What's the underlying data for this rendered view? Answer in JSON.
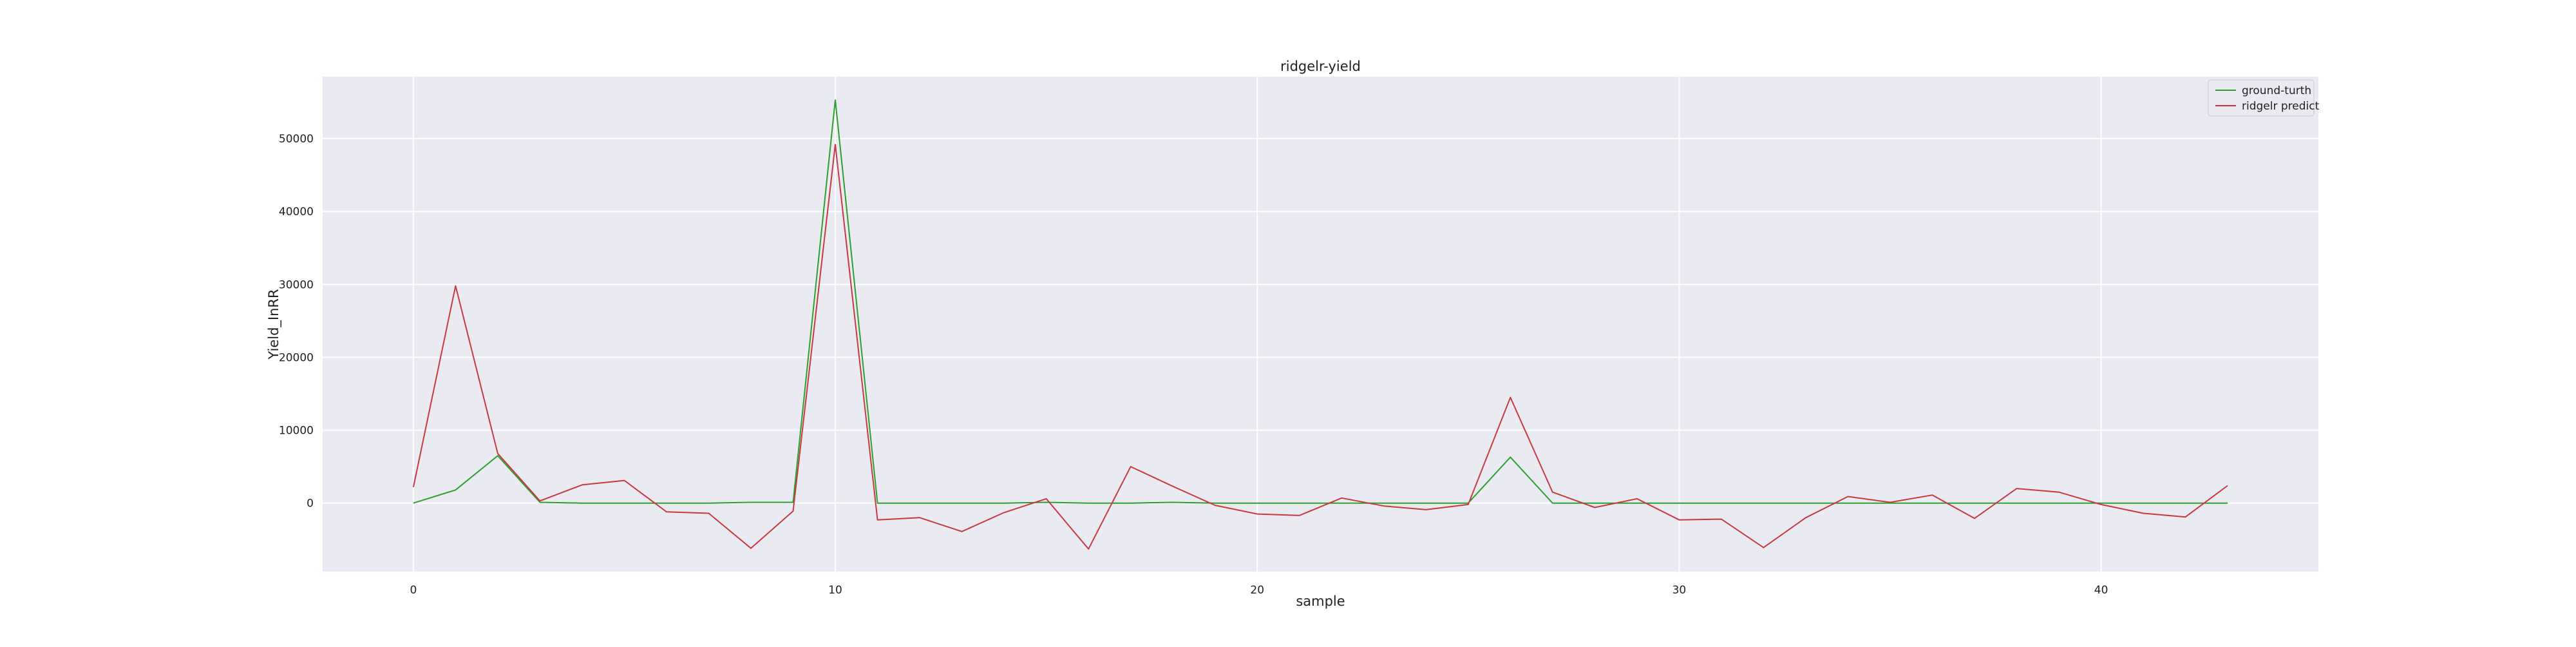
{
  "chart_data": {
    "type": "line",
    "title": "ridgelr-yield",
    "xlabel": "sample",
    "ylabel": "Yield_InRR",
    "xlim": [
      -2.15,
      45.15
    ],
    "ylim": [
      -9400,
      58500
    ],
    "xticks": [
      0,
      10,
      20,
      30,
      40
    ],
    "yticks": [
      0,
      10000,
      20000,
      30000,
      40000,
      50000
    ],
    "grid": true,
    "legend_position": "top-right",
    "x": [
      0,
      1,
      2,
      3,
      4,
      5,
      6,
      7,
      8,
      9,
      10,
      11,
      12,
      13,
      14,
      15,
      16,
      17,
      18,
      19,
      20,
      21,
      22,
      23,
      24,
      25,
      26,
      27,
      28,
      29,
      30,
      31,
      32,
      33,
      34,
      35,
      36,
      37,
      38,
      39,
      40,
      41,
      42,
      43
    ],
    "series": [
      {
        "name": "ground-turth",
        "color": "#2ca02c",
        "values": [
          0,
          1800,
          6500,
          100,
          0,
          0,
          0,
          0,
          100,
          100,
          55300,
          0,
          0,
          0,
          0,
          100,
          0,
          0,
          100,
          0,
          0,
          0,
          0,
          0,
          0,
          0,
          6300,
          0,
          0,
          0,
          0,
          0,
          0,
          0,
          0,
          0,
          0,
          0,
          0,
          0,
          0,
          0,
          0,
          0
        ]
      },
      {
        "name": "ridgelr predict",
        "color": "#c8383f",
        "values": [
          2200,
          29800,
          6800,
          300,
          2500,
          3100,
          -1200,
          -1400,
          -6200,
          -1100,
          49200,
          -2300,
          -2000,
          -3900,
          -1300,
          600,
          -6300,
          5000,
          2300,
          -300,
          -1500,
          -1700,
          700,
          -400,
          -900,
          -200,
          14500,
          1500,
          -600,
          600,
          -2300,
          -2200,
          -6100,
          -2000,
          900,
          100,
          1100,
          -2100,
          2000,
          1500,
          -200,
          -1400,
          -1900,
          2400
        ]
      }
    ]
  }
}
